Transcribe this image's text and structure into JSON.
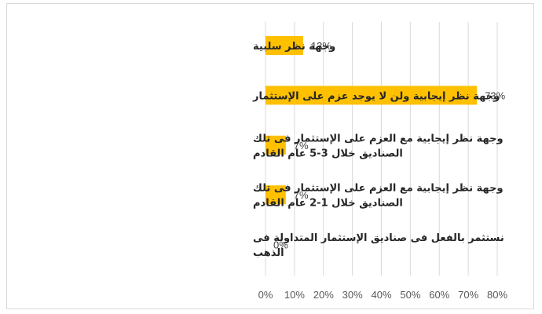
{
  "chart_data": {
    "type": "bar",
    "orientation": "horizontal",
    "categories": [
      [
        "وجهة نظر سلبية"
      ],
      [
        "وجهة نظر إيجابية ولن لا يوجد عزم على الإستثمار"
      ],
      [
        "وجهة نظر إيجابية مع العزم على الإستثمار فى تلك",
        "الصناديق خلال 3-5 عام القادم"
      ],
      [
        "وجهة نظر إيجابية مع العزم على الإستثمار فى تلك",
        "الصناديق خلال 1-2 عام القادم"
      ],
      [
        "نستثمر بالفعل فى صناديق الإستثمار المتداولة فى",
        "الذهب"
      ]
    ],
    "values": [
      13,
      73,
      7,
      7,
      0
    ],
    "data_labels": [
      "13%",
      "73%",
      "7%",
      "7%",
      "0%"
    ],
    "xlim": [
      0,
      80
    ],
    "x_ticks": [
      0,
      10,
      20,
      30,
      40,
      50,
      60,
      70,
      80
    ],
    "x_tick_labels": [
      "0%",
      "10%",
      "20%",
      "30%",
      "40%",
      "50%",
      "60%",
      "70%",
      "80%"
    ],
    "title": "",
    "xlabel": "",
    "ylabel": "",
    "grid": "vertical",
    "bar_color": "#FFC000",
    "grid_color": "#d9d9d9",
    "legend": "none"
  }
}
